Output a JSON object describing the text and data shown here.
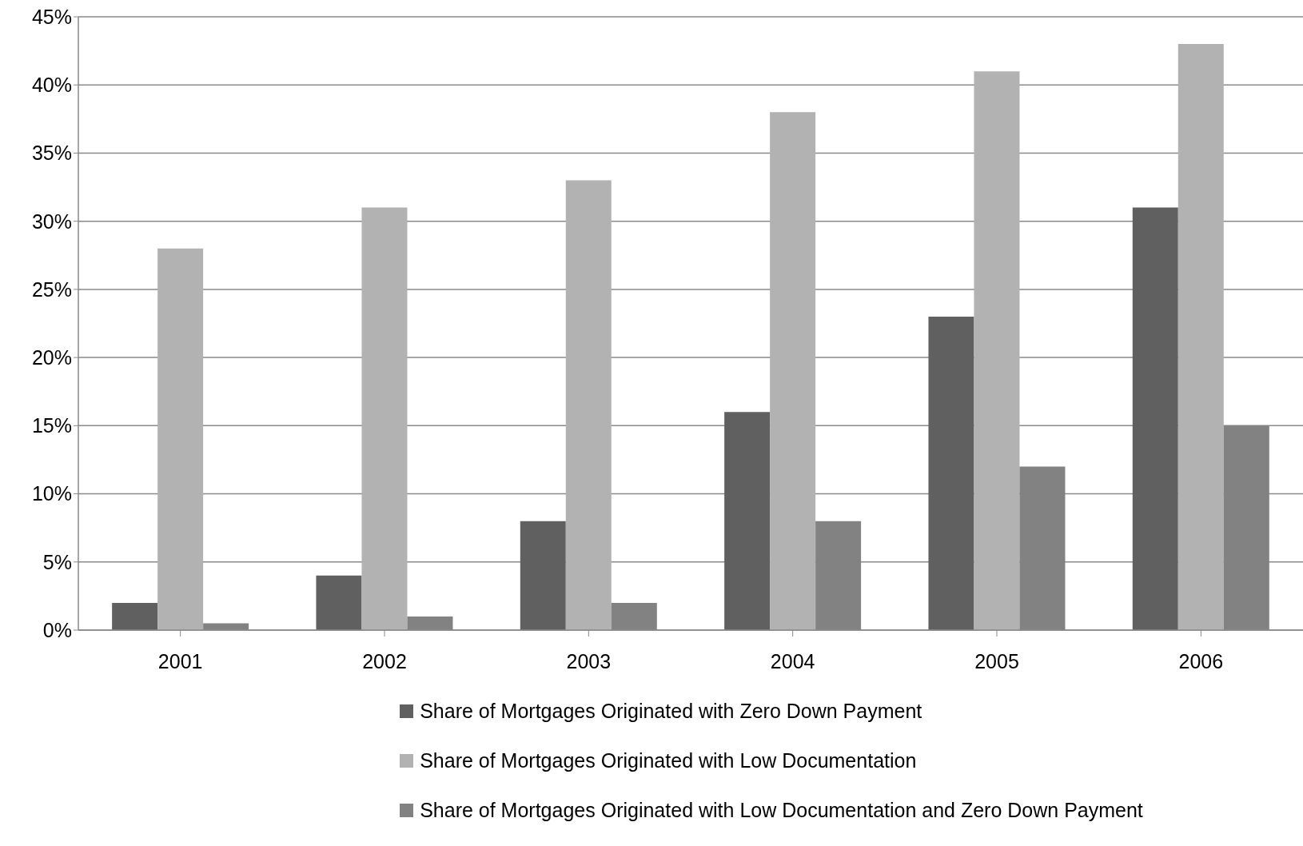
{
  "chart_data": {
    "type": "bar",
    "categories": [
      "2001",
      "2002",
      "2003",
      "2004",
      "2005",
      "2006"
    ],
    "series": [
      {
        "name": "Share of Mortgages Originated with Zero Down Payment",
        "color": "#606060",
        "values": [
          2,
          4,
          8,
          16,
          23,
          31
        ]
      },
      {
        "name": "Share of Mortgages Originated with Low Documentation",
        "color": "#b2b2b2",
        "values": [
          28,
          31,
          33,
          38,
          41,
          43
        ]
      },
      {
        "name": "Share of Mortgages Originated with Low Documentation and Zero Down Payment",
        "color": "#828282",
        "values": [
          0.5,
          1,
          2,
          8,
          12,
          15
        ]
      }
    ],
    "ylim": [
      0,
      45
    ],
    "yticks": [
      {
        "value": 0,
        "label": "0%"
      },
      {
        "value": 5,
        "label": "5%"
      },
      {
        "value": 10,
        "label": "10%"
      },
      {
        "value": 15,
        "label": "15%"
      },
      {
        "value": 20,
        "label": "20%"
      },
      {
        "value": 25,
        "label": "25%"
      },
      {
        "value": 30,
        "label": "30%"
      },
      {
        "value": 35,
        "label": "35%"
      },
      {
        "value": 40,
        "label": "40%"
      },
      {
        "value": 45,
        "label": "45%"
      }
    ],
    "grid": "y",
    "legend": "bottom"
  }
}
